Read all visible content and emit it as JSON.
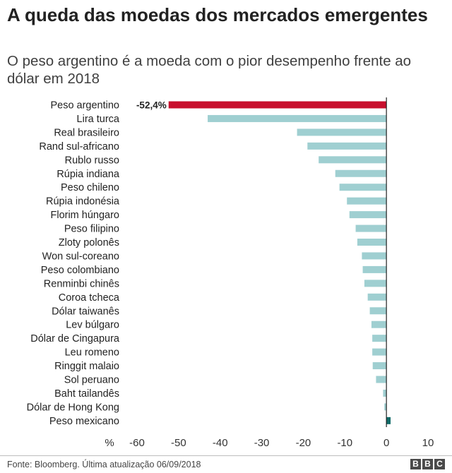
{
  "header": {
    "title": "A queda das moedas dos mercados emergentes",
    "subtitle": "O peso argentino é a moeda com o pior desempenho frente ao dólar em 2018"
  },
  "footer": {
    "source": "Fonte: Bloomberg. Última atualização 06/09/2018",
    "logo_letters": [
      "B",
      "B",
      "C"
    ]
  },
  "colors": {
    "highlight": "#c8102e",
    "default_bar": "#9fcfd1",
    "positive_bar": "#0f6b68",
    "axis": "#222222"
  },
  "chart_data": {
    "type": "bar",
    "orientation": "horizontal",
    "title": "A queda das moedas dos mercados emergentes",
    "xlabel": "%",
    "xlim": [
      -60,
      10
    ],
    "xticks": [
      -60,
      -50,
      -40,
      -30,
      -20,
      -10,
      0,
      10
    ],
    "xtick_labels": [
      "-60",
      "-50",
      "-40",
      "-30",
      "-20",
      "-10",
      "0",
      "10"
    ],
    "categories": [
      "Peso argentino",
      "Lira turca",
      "Real brasileiro",
      "Rand sul-africano",
      "Rublo russo",
      "Rúpia indiana",
      "Peso chileno",
      "Rúpia indonésia",
      "Florim húngaro",
      "Peso filipino",
      "Zloty polonês",
      "Won sul-coreano",
      "Peso colombiano",
      "Renminbi chinês",
      "Coroa tcheca",
      "Dólar taiwanês",
      "Lev búlgaro",
      "Dólar de Cingapura",
      "Leu romeno",
      "Ringgit malaio",
      "Sol peruano",
      "Baht tailandês",
      "Dólar de Hong Kong",
      "Peso mexicano"
    ],
    "values": [
      -52.4,
      -43.0,
      -21.5,
      -19.0,
      -16.3,
      -12.3,
      -11.3,
      -9.5,
      -8.9,
      -7.4,
      -7.0,
      -5.9,
      -5.7,
      -5.3,
      -4.5,
      -4.0,
      -3.6,
      -3.4,
      -3.4,
      -3.3,
      -2.5,
      -0.8,
      -0.5,
      1.0
    ],
    "highlight_index": 0,
    "data_labels": [
      {
        "index": 0,
        "text": "-52,4%"
      }
    ]
  }
}
